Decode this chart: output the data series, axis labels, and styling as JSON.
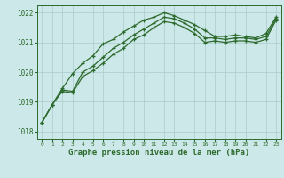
{
  "x": [
    0,
    1,
    2,
    3,
    4,
    5,
    6,
    7,
    8,
    9,
    10,
    11,
    12,
    13,
    14,
    15,
    16,
    17,
    18,
    19,
    20,
    21,
    22,
    23
  ],
  "line_top": [
    1018.3,
    1018.9,
    1019.45,
    1019.95,
    1020.3,
    1020.55,
    1020.95,
    1021.1,
    1021.35,
    1021.55,
    1021.75,
    1021.85,
    1022.0,
    1021.9,
    1021.75,
    1021.6,
    1021.4,
    1021.2,
    1021.2,
    1021.25,
    1021.2,
    1021.15,
    1021.3,
    1021.85
  ],
  "line_mid": [
    1018.3,
    1018.9,
    1019.4,
    1019.35,
    1020.0,
    1020.2,
    1020.5,
    1020.8,
    1021.0,
    1021.25,
    1021.45,
    1021.65,
    1021.85,
    1021.8,
    1021.65,
    1021.45,
    1021.15,
    1021.15,
    1021.1,
    1021.15,
    1021.15,
    1021.1,
    1021.2,
    1021.8
  ],
  "line_bot": [
    1018.3,
    1018.9,
    1019.35,
    1019.3,
    1019.85,
    1020.05,
    1020.3,
    1020.6,
    1020.8,
    1021.1,
    1021.25,
    1021.5,
    1021.7,
    1021.65,
    1021.5,
    1021.3,
    1021.0,
    1021.05,
    1021.0,
    1021.05,
    1021.05,
    1021.0,
    1021.1,
    1021.75
  ],
  "ylim": [
    1017.75,
    1022.25
  ],
  "yticks": [
    1018,
    1019,
    1020,
    1021,
    1022
  ],
  "xticks": [
    0,
    1,
    2,
    3,
    4,
    5,
    6,
    7,
    8,
    9,
    10,
    11,
    12,
    13,
    14,
    15,
    16,
    17,
    18,
    19,
    20,
    21,
    22,
    23
  ],
  "xlabel": "Graphe pression niveau de la mer (hPa)",
  "line_color": "#2d6a2d",
  "bg_color": "#cce8e8",
  "grid_color": "#aacccc",
  "tick_color": "#2d6a2d"
}
